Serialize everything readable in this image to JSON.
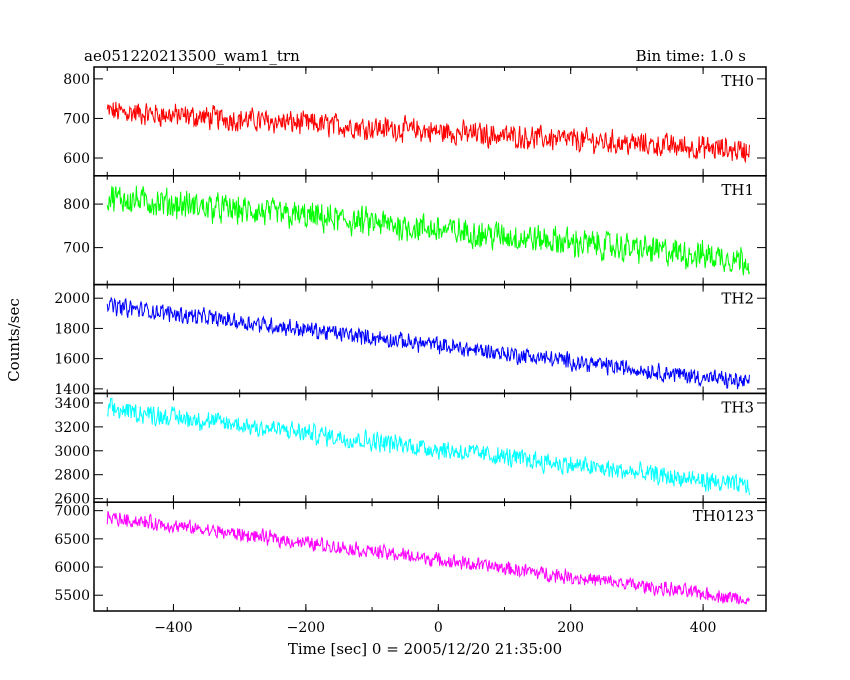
{
  "chart_data": {
    "type": "line",
    "title": "ae051220213500_wam1_trn",
    "subtitle": "Bin time: 1.0 s",
    "xlabel": "Time [sec] 0 = 2005/12/20 21:35:00",
    "ylabel": "Counts/sec",
    "xlim": [
      -520,
      495
    ],
    "x_ticks": [
      -400,
      -200,
      0,
      200,
      400
    ],
    "x_range_data": [
      -500,
      470
    ],
    "grid": false,
    "panels": [
      {
        "name": "TH0",
        "color": "#ff0000",
        "ylim": [
          555,
          830
        ],
        "y_ticks": [
          600,
          700,
          800
        ],
        "trend": {
          "x": [
            -500,
            470
          ],
          "y": [
            718,
            618
          ]
        },
        "noise_amp": 40
      },
      {
        "name": "TH1",
        "color": "#00ff00",
        "ylim": [
          615,
          865
        ],
        "y_ticks": [
          700,
          800
        ],
        "trend": {
          "x": [
            -500,
            470
          ],
          "y": [
            815,
            672
          ]
        },
        "noise_amp": 45
      },
      {
        "name": "TH2",
        "color": "#0000ff",
        "ylim": [
          1370,
          2090
        ],
        "y_ticks": [
          1400,
          1600,
          1800,
          2000
        ],
        "trend": {
          "x": [
            -500,
            470
          ],
          "y": [
            1950,
            1440
          ]
        },
        "noise_amp": 75
      },
      {
        "name": "TH3",
        "color": "#00ffff",
        "ylim": [
          2570,
          3480
        ],
        "y_ticks": [
          2600,
          2800,
          3000,
          3200,
          3400
        ],
        "trend": {
          "x": [
            -500,
            470
          ],
          "y": [
            3350,
            2700
          ]
        },
        "noise_amp": 110
      },
      {
        "name": "TH0123",
        "color": "#ff00ff",
        "ylim": [
          5220,
          7150
        ],
        "y_ticks": [
          5500,
          6000,
          6500,
          7000
        ],
        "trend": {
          "x": [
            -500,
            470
          ],
          "y": [
            6880,
            5420
          ]
        },
        "noise_amp": 170
      }
    ]
  }
}
